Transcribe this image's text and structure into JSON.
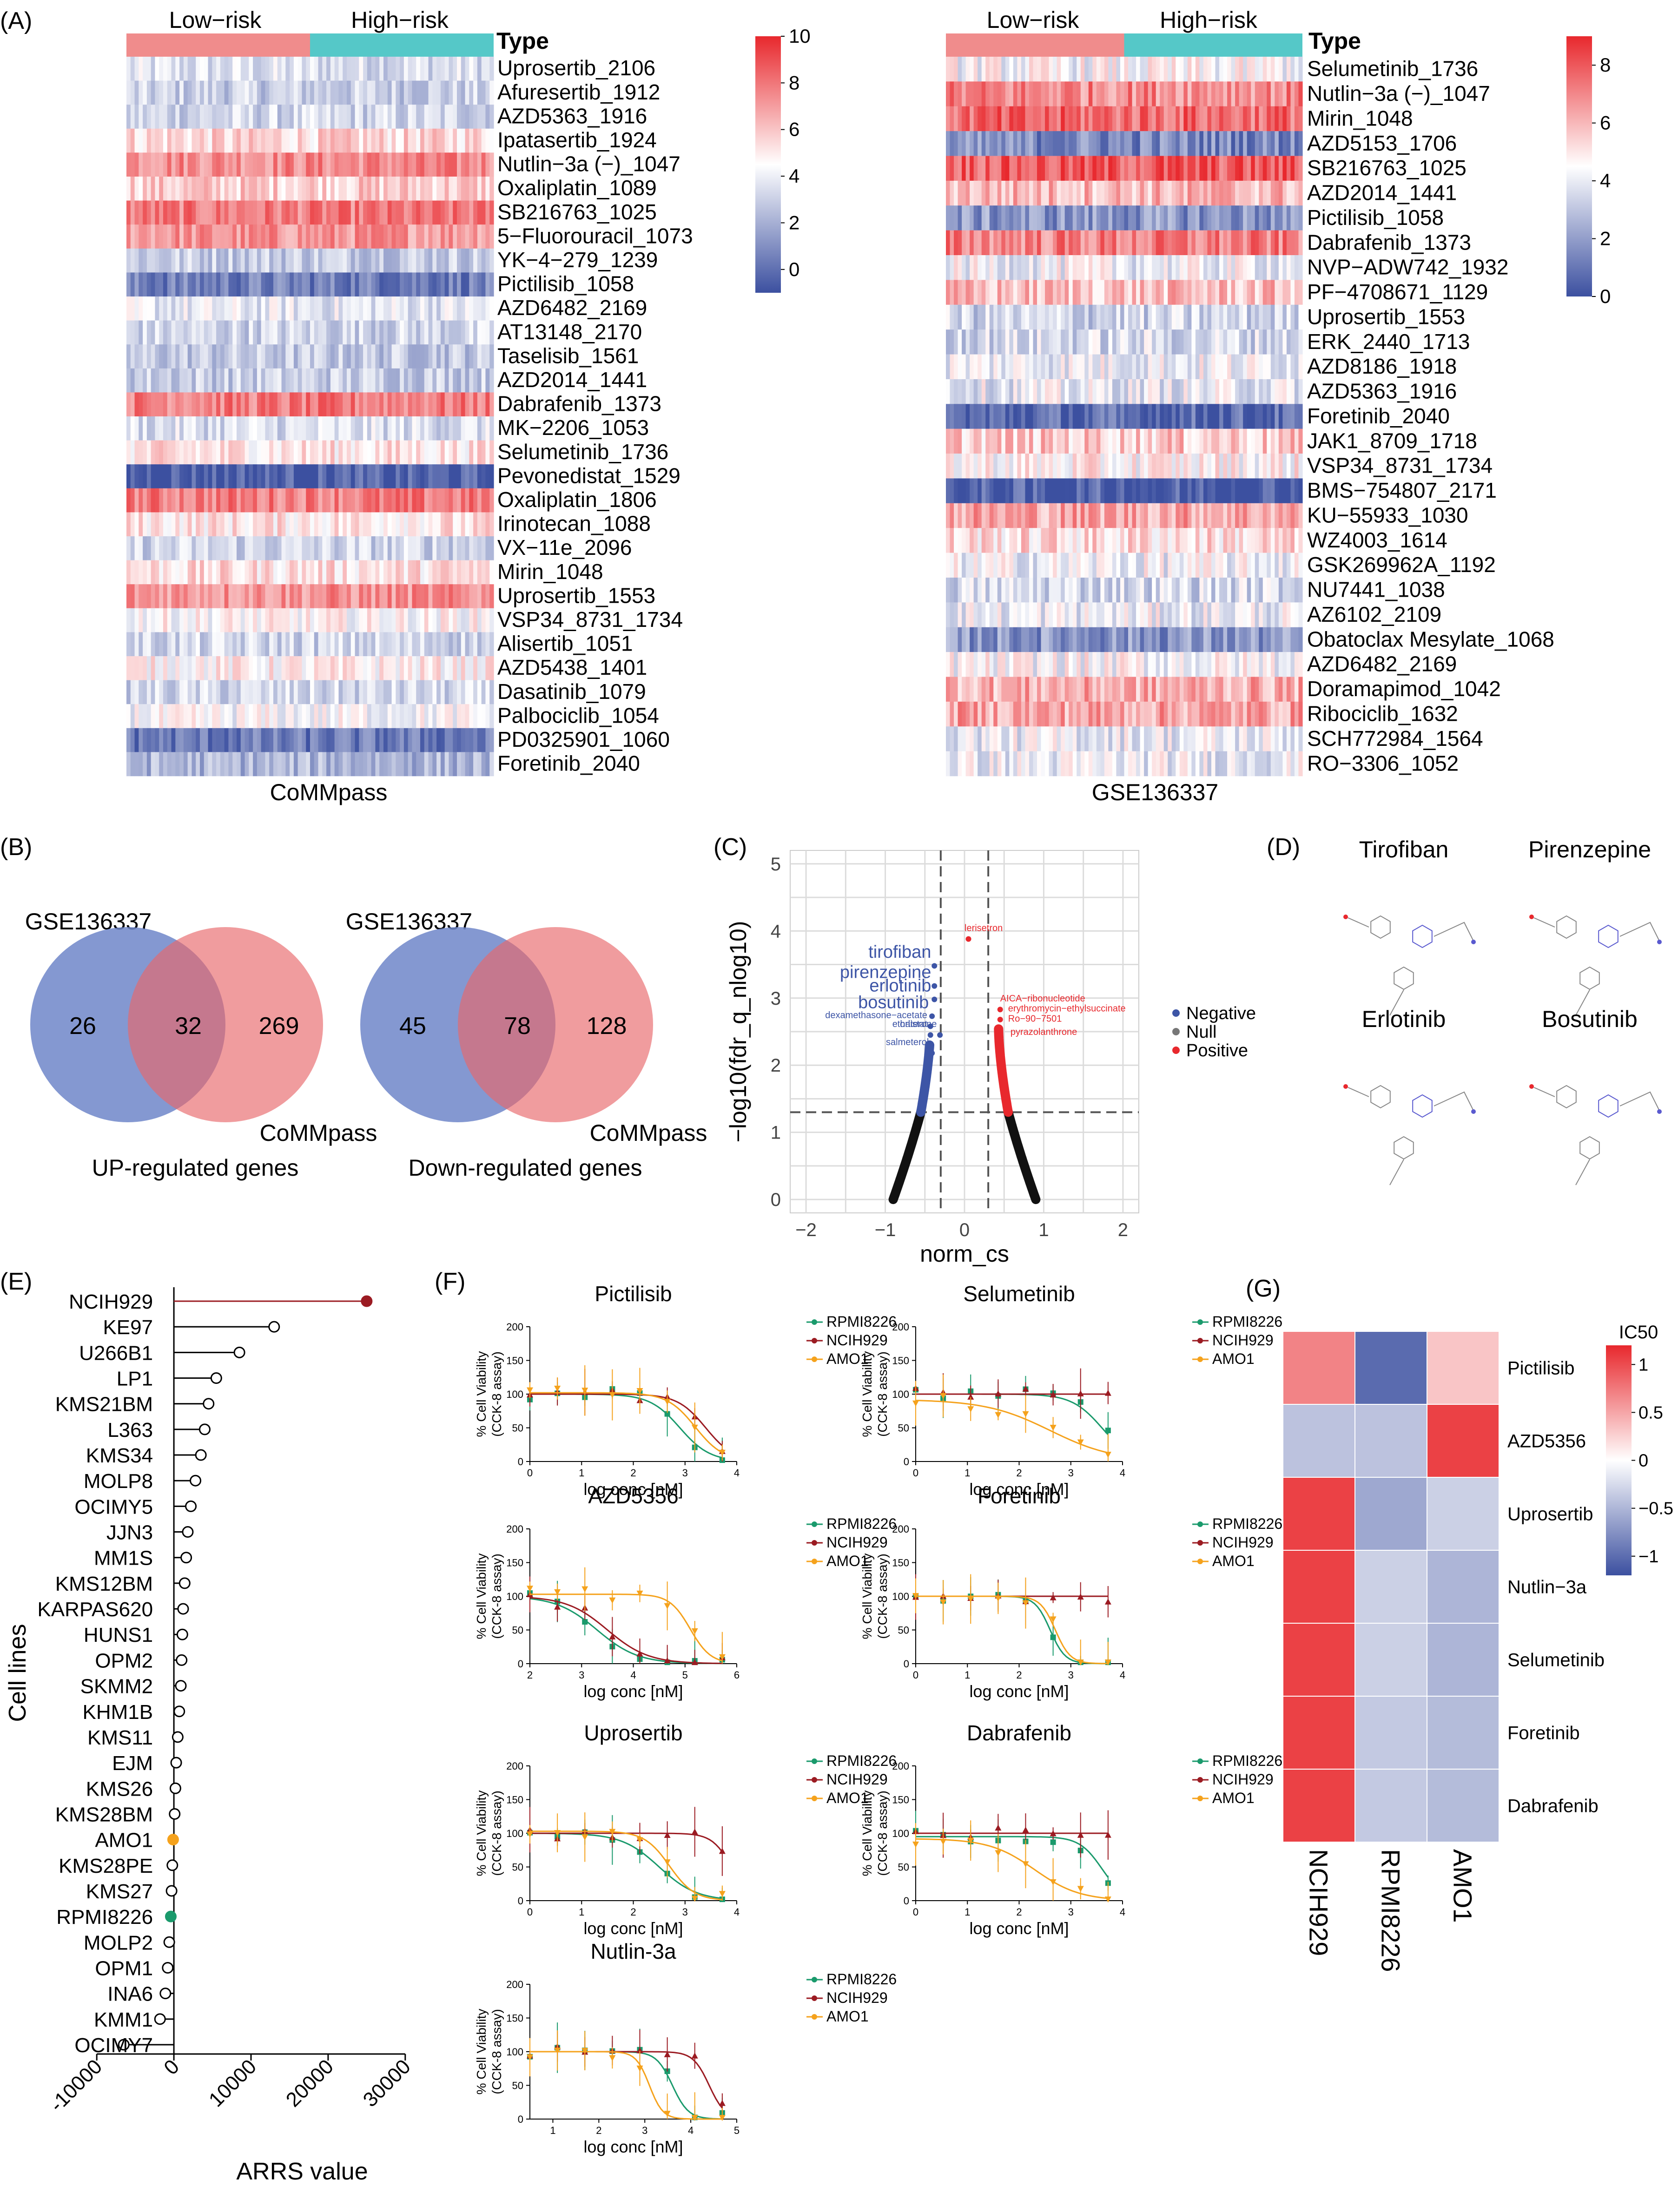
{
  "colors": {
    "low": "#f08c8c",
    "high": "#55c8c8",
    "red": "#e8282d",
    "blue": "#3c50a0",
    "white": "#ffffff",
    "neg": "#3d55a6",
    "pos": "#e8282d",
    "null": "#777777",
    "green": "#1a9a6c",
    "darkred": "#9b1b22",
    "orange": "#f5a21c",
    "vennBlue": "#6f86c9",
    "vennRed": "#e87b7b"
  },
  "panels": {
    "a": "(A)",
    "b": "(B)",
    "c": "(C)",
    "d": "(D)",
    "e": "(E)",
    "f": "(F)",
    "g": "(G)"
  },
  "heatA": {
    "left": {
      "groups": [
        "Low−risk",
        "High−risk"
      ],
      "type_label": "Type",
      "dataset": "CoMMpass",
      "scale_ticks": [
        "10",
        "8",
        "6",
        "4",
        "2",
        "0"
      ],
      "scale_range": [
        -1,
        10
      ],
      "drugs": [
        "Uprosertib_2106",
        "Afuresertib_1912",
        "AZD5363_1916",
        "Ipatasertib_1924",
        "Nutlin−3a (−)_1047",
        "Oxaliplatin_1089",
        "SB216763_1025",
        "5−Fluorouracil_1073",
        "YK−4−279_1239",
        "Pictilisib_1058",
        "AZD6482_2169",
        "AT13148_2170",
        "Taselisib_1561",
        "AZD2014_1441",
        "Dabrafenib_1373",
        "MK−2206_1053",
        "Selumetinib_1736",
        "Pevonedistat_1529",
        "Oxaliplatin_1806",
        "Irinotecan_1088",
        "VX−11e_2096",
        "Mirin_1048",
        "Uprosertib_1553",
        "VSP34_8731_1734",
        "Alisertib_1051",
        "AZD5438_1401",
        "Dasatinib_1079",
        "Palbociclib_1054",
        "PD0325901_1060",
        "Foretinib_2040"
      ],
      "row_levels": [
        3.5,
        3.0,
        3.2,
        5.5,
        7.5,
        5.8,
        7.8,
        7.2,
        3.0,
        0.5,
        3.8,
        3.2,
        2.8,
        3.0,
        7.8,
        3.5,
        5.2,
        -0.5,
        7.8,
        5.2,
        3.2,
        5.3,
        7.3,
        4.6,
        3.2,
        4.8,
        3.2,
        4.3,
        0.3,
        2.2
      ]
    },
    "right": {
      "groups": [
        "Low−risk",
        "High−risk"
      ],
      "type_label": "Type",
      "dataset": "GSE136337",
      "scale_ticks": [
        "8",
        "6",
        "4",
        "2",
        "0"
      ],
      "scale_range": [
        0,
        9
      ],
      "drugs": [
        "Selumetinib_1736",
        "Nutlin−3a (−)_1047",
        "Mirin_1048",
        "AZD5153_1706",
        "SB216763_1025",
        "AZD2014_1441",
        "Pictilisib_1058",
        "Dabrafenib_1373",
        "NVP−ADW742_1932",
        "PF−4708671_1129",
        "Uprosertib_1553",
        "ERK_2440_1713",
        "AZD8186_1918",
        "AZD5363_1916",
        "Foretinib_2040",
        "JAK1_8709_1718",
        "VSP34_8731_1734",
        "BMS−754807_2171",
        "KU−55933_1030",
        "WZ4003_1614",
        "GSK269962A_1192",
        "NU7441_1038",
        "AZ6102_2109",
        "Obatoclax Mesylate_1068",
        "AZD6482_2169",
        "Doramapimod_1042",
        "Ribociclib_1632",
        "SCH772984_1564",
        "RO−3306_1052"
      ],
      "row_levels": [
        4.4,
        7.0,
        7.6,
        1.5,
        7.9,
        6.0,
        1.8,
        7.1,
        4.2,
        5.8,
        3.4,
        3.6,
        4.2,
        4.0,
        0.6,
        5.6,
        4.7,
        0.3,
        6.4,
        5.2,
        4.2,
        3.6,
        4.1,
        1.8,
        4.4,
        6.2,
        6.4,
        4.1,
        4.1
      ]
    }
  },
  "venn": [
    {
      "title": "GSE136337",
      "left_only": "26",
      "overlap": "32",
      "right_only": "269",
      "right_label": "CoMMpass",
      "caption": "UP-regulated genes"
    },
    {
      "title": "GSE136337",
      "left_only": "45",
      "overlap": "78",
      "right_only": "128",
      "right_label": "CoMMpass",
      "caption": "Down-regulated genes"
    }
  ],
  "volcano": {
    "xlabel": "norm_cs",
    "ylabel": "−log10(fdr_q_nlog10)",
    "xticks": [
      "−2",
      "−1",
      "0",
      "1",
      "2"
    ],
    "yticks": [
      "0",
      "1",
      "2",
      "3",
      "4",
      "5"
    ],
    "xlim": [
      -2.2,
      2.2
    ],
    "ylim": [
      -0.2,
      5.2
    ],
    "vlines": [
      -0.3,
      0.3
    ],
    "hline": 1.3,
    "legend": [
      "Negative",
      "Null",
      "Positive"
    ],
    "neg_labels": [
      {
        "t": "tirofiban",
        "x": -0.42,
        "y": 3.6
      },
      {
        "t": "pirenzepine",
        "x": -0.42,
        "y": 3.3
      },
      {
        "t": "erlotinib",
        "x": -0.42,
        "y": 3.1
      },
      {
        "t": "bosutinib",
        "x": -0.45,
        "y": 2.85
      },
      {
        "t": "dexamethasone−acetate",
        "x": -0.47,
        "y": 2.7
      },
      {
        "t": "orlistat",
        "x": -0.47,
        "y": 2.57
      },
      {
        "t": "ethaterone",
        "x": -0.35,
        "y": 2.57
      },
      {
        "t": "salmeterol",
        "x": -0.45,
        "y": 2.3
      }
    ],
    "pos_labels": [
      {
        "t": "lerisetron",
        "x": 0.0,
        "y": 4.0
      },
      {
        "t": "AICA−ribonucleotide",
        "x": 0.45,
        "y": 2.95
      },
      {
        "t": "erythromycin−ethylsuccinate",
        "x": 0.55,
        "y": 2.8
      },
      {
        "t": "Ro−90−7501",
        "x": 0.55,
        "y": 2.65
      },
      {
        "t": "pyrazolanthrone",
        "x": 0.58,
        "y": 2.45
      }
    ]
  },
  "structures": {
    "names": [
      "Tirofiban",
      "Pirenzepine",
      "Erlotinib",
      "Bosutinib"
    ]
  },
  "lollipop": {
    "ylabel": "Cell lines",
    "xlabel": "ARRS value",
    "xticks": [
      "-10000",
      "0",
      "10000",
      "20000",
      "30000"
    ],
    "xlim": [
      -12000,
      32000
    ],
    "lines": [
      "NCIH929",
      "KE97",
      "U266B1",
      "LP1",
      "KMS21BM",
      "L363",
      "KMS34",
      "MOLP8",
      "OCIMY5",
      "JJN3",
      "MM1S",
      "KMS12BM",
      "KARPAS620",
      "HUNS1",
      "OPM2",
      "SKMM2",
      "KHM1B",
      "KMS11",
      "EJM",
      "KMS26",
      "KMS28BM",
      "AMO1",
      "KMS28PE",
      "KMS27",
      "RPMI8226",
      "MOLP2",
      "OPM1",
      "INA6",
      "KMM1",
      "OCIMY7"
    ],
    "values": [
      25000,
      13000,
      8500,
      5500,
      4500,
      4000,
      3500,
      2800,
      2200,
      1800,
      1600,
      1400,
      1200,
      1100,
      1000,
      900,
      700,
      500,
      300,
      200,
      100,
      -100,
      -200,
      -300,
      -400,
      -600,
      -800,
      -1100,
      -1800,
      -6500
    ]
  },
  "curves": {
    "ylabel": "% Cell Viability\n(CCK-8 assay)",
    "xlabel": "log conc [nM]",
    "legend": [
      "RPMI8226",
      "NCIH929",
      "AMO1"
    ],
    "yticks": [
      "0",
      "50",
      "100",
      "150",
      "200"
    ],
    "plots": [
      {
        "title": "Pictilisib",
        "xticks": [
          "0",
          "1",
          "2",
          "3",
          "4"
        ],
        "xlim": [
          0,
          4
        ],
        "ec50": [
          2.9,
          3.4,
          3.2
        ],
        "hill": [
          1.5,
          1.6,
          1.6
        ],
        "top": [
          100,
          100,
          102
        ]
      },
      {
        "title": "Selumetinib",
        "xticks": [
          "0",
          "1",
          "2",
          "3",
          "4"
        ],
        "xlim": [
          0,
          4
        ],
        "ec50": [
          3.6,
          9,
          2.6
        ],
        "hill": [
          1.5,
          1,
          0.7
        ],
        "top": [
          100,
          100,
          92
        ]
      },
      {
        "title": "AZD5356",
        "xticks": [
          "2",
          "3",
          "4",
          "5",
          "6"
        ],
        "xlim": [
          2,
          6
        ],
        "ec50": [
          3.3,
          3.5,
          5.1
        ],
        "hill": [
          1.1,
          1.1,
          2.2
        ],
        "top": [
          100,
          100,
          103
        ]
      },
      {
        "title": "Foretinib",
        "xticks": [
          "0",
          "1",
          "2",
          "3",
          "4"
        ],
        "xlim": [
          0,
          4
        ],
        "ec50": [
          2.6,
          9,
          2.7
        ],
        "hill": [
          3,
          1,
          3
        ],
        "top": [
          100,
          100,
          100
        ]
      },
      {
        "title": "Uprosertib",
        "xticks": [
          "0",
          "1",
          "2",
          "3",
          "4"
        ],
        "xlim": [
          0,
          4
        ],
        "ec50": [
          2.5,
          3.9,
          2.7
        ],
        "hill": [
          1.2,
          2.3,
          1.8
        ],
        "top": [
          100,
          100,
          103
        ]
      },
      {
        "title": "Dabrafenib",
        "xticks": [
          "0",
          "1",
          "2",
          "3",
          "4"
        ],
        "xlim": [
          0,
          4
        ],
        "ec50": [
          3.6,
          9,
          2.3
        ],
        "hill": [
          2,
          1,
          1
        ],
        "top": [
          95,
          100,
          92
        ]
      },
      {
        "title": "Nutlin-3a",
        "xticks": [
          "1",
          "2",
          "3",
          "4",
          "5"
        ],
        "xlim": [
          0.5,
          5
        ],
        "ec50": [
          3.6,
          4.4,
          3.1
        ],
        "hill": [
          2.5,
          2.5,
          3
        ],
        "top": [
          100,
          100,
          100
        ]
      }
    ]
  },
  "icHeat": {
    "title": "IC50",
    "rows": [
      "Pictilisib",
      "AZD5356",
      "Uprosertib",
      "Nutlin−3a",
      "Selumetinib",
      "Foretinib",
      "Dabrafenib"
    ],
    "cols": [
      "NCIH929",
      "RPMI8226",
      "AMO1"
    ],
    "scale_ticks": [
      "1",
      "0.5",
      "0",
      "−0.5",
      "−1"
    ],
    "values": [
      [
        0.75,
        -1.1,
        0.35
      ],
      [
        -0.45,
        -0.45,
        1.15
      ],
      [
        1.15,
        -0.65,
        -0.35
      ],
      [
        1.15,
        -0.35,
        -0.55
      ],
      [
        1.15,
        -0.35,
        -0.55
      ],
      [
        1.15,
        -0.4,
        -0.5
      ],
      [
        1.15,
        -0.4,
        -0.5
      ]
    ]
  },
  "chart_data": [
    {
      "type": "heatmap",
      "title": "(A) CoMMpass",
      "groups": [
        "Low−risk",
        "High−risk"
      ],
      "colorbar": [
        -1,
        10
      ]
    },
    {
      "type": "heatmap",
      "title": "(A) GSE136337",
      "groups": [
        "Low−risk",
        "High−risk"
      ],
      "colorbar": [
        0,
        9
      ]
    },
    {
      "type": "scatter",
      "title": "(C)",
      "xlabel": "norm_cs",
      "ylabel": "−log10(fdr_q_nlog10)",
      "xlim": [
        -2.2,
        2.2
      ],
      "ylim": [
        0,
        5
      ]
    },
    {
      "type": "bar",
      "title": "(E)",
      "xlabel": "ARRS value",
      "ylabel": "Cell lines",
      "xlim": [
        -12000,
        32000
      ]
    },
    {
      "type": "line",
      "title": "(F)",
      "xlabel": "log conc [nM]",
      "ylabel": "% Cell Viability (CCK-8 assay)",
      "ylim": [
        0,
        200
      ],
      "series": [
        {
          "name": "RPMI8226"
        },
        {
          "name": "NCIH929"
        },
        {
          "name": "AMO1"
        }
      ]
    },
    {
      "type": "heatmap",
      "title": "(G) IC50",
      "categories": [
        "NCIH929",
        "RPMI8226",
        "AMO1"
      ]
    }
  ]
}
